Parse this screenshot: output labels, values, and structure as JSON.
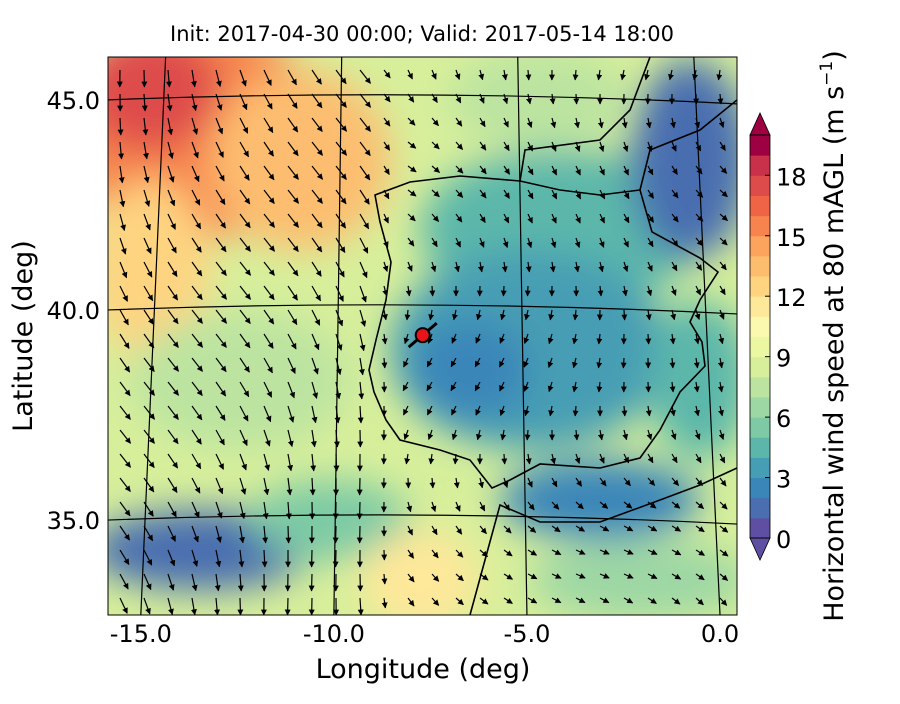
{
  "title": "Init: 2017-04-30 00:00; Valid: 2017-05-14 18:00",
  "map": {
    "xlabel": "Longitude (deg)",
    "ylabel": "Latitude (deg)",
    "xlim": [
      -15.85,
      0.44
    ],
    "ylim": [
      32.74,
      46.02
    ],
    "xticks": [
      {
        "value": -15,
        "label": "-15.0"
      },
      {
        "value": -10,
        "label": "-10.0"
      },
      {
        "value": -5,
        "label": "-5.0"
      },
      {
        "value": 0,
        "label": "0.0"
      }
    ],
    "yticks": [
      {
        "value": 35,
        "label": "35.0"
      },
      {
        "value": 40,
        "label": "40.0"
      },
      {
        "value": 45,
        "label": "45.0"
      }
    ],
    "site": {
      "lon": -7.7,
      "lat": 39.4,
      "color": "#e8141c"
    }
  },
  "colorbar": {
    "label_parts": [
      "Horizontal wind speed at 80 mAGL (m s",
      "−1",
      ")"
    ],
    "lim": [
      0,
      20
    ],
    "ticks": [
      0,
      3,
      6,
      9,
      12,
      15,
      18
    ],
    "colors": [
      "#5e4fa2",
      "#4a6eb0",
      "#3a86b9",
      "#469eb4",
      "#5cb7aa",
      "#7dcaa5",
      "#9dd7a4",
      "#bce4a0",
      "#d7ef9b",
      "#ecf7a2",
      "#fbf8b0",
      "#fee89a",
      "#fed481",
      "#fdbd6f",
      "#fca35d",
      "#f7844e",
      "#ee6445",
      "#de4b4b",
      "#c9304a",
      "#9e0142"
    ]
  }
}
